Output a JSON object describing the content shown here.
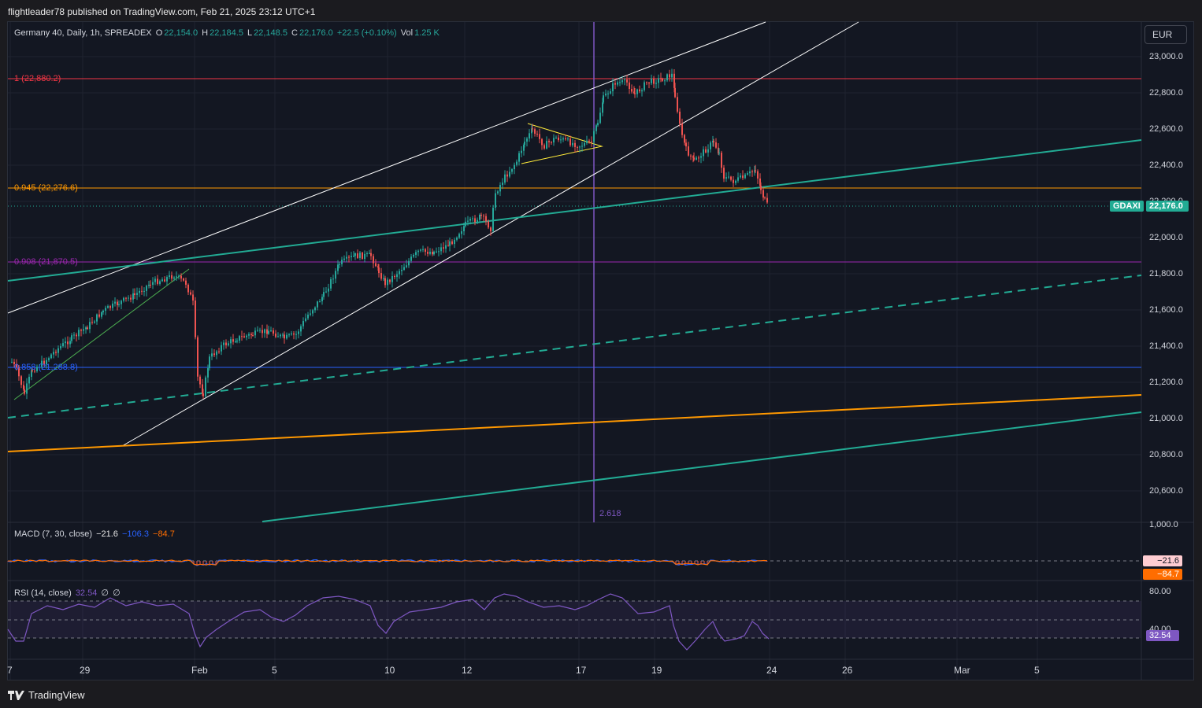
{
  "header": {
    "attribution": "flightleader78 published on TradingView.com, Feb 21, 2025 23:12 UTC+1"
  },
  "legend": {
    "symbol": "Germany 40, Daily, 1h, SPREADEX",
    "o_label": "O",
    "o_value": "22,154.0",
    "h_label": "H",
    "h_value": "22,184.5",
    "l_label": "L",
    "l_value": "22,148.5",
    "c_label": "C",
    "c_value": "22,176.0",
    "change": "+22.5 (+0.10%)",
    "vol_label": "Vol",
    "vol_value": "1.25 K"
  },
  "currency_button": "EUR",
  "price_axis": [
    "23,000.0",
    "22,800.0",
    "22,600.0",
    "22,400.0",
    "22,200.0",
    "22,000.0",
    "21,800.0",
    "21,600.0",
    "21,400.0",
    "21,200.0",
    "21,000.0",
    "20,800.0",
    "20,600.0"
  ],
  "price_axis_bottom": "1,000.0",
  "current_price": {
    "ticker": "GDAXI",
    "value": "22,176.0"
  },
  "fib_levels": [
    {
      "label": "1 (22,880.2)",
      "color": "#f23645"
    },
    {
      "label": "0.945 (22,276.6)",
      "color": "#ff9800"
    },
    {
      "label": "0.908 (21,870.5)",
      "color": "#9c27b0"
    },
    {
      "label": "0.858 (21,288.8)",
      "color": "#2962ff"
    }
  ],
  "fib_time_label": "2.618",
  "macd": {
    "title": "MACD (7, 30, close)",
    "v1": "−21.6",
    "v2": "−106.3",
    "v3": "−84.7",
    "badge1": "−21.6",
    "badge2": "−84.7"
  },
  "rsi": {
    "title": "RSI (14, close)",
    "value": "32.54",
    "extra1": "∅",
    "extra2": "∅",
    "axis_top": "80.00",
    "axis_mid": "40.00",
    "badge": "32.54"
  },
  "time_axis": [
    "7",
    "29",
    "Feb",
    "5",
    "10",
    "12",
    "17",
    "19",
    "24",
    "26",
    "Mar",
    "5"
  ],
  "footer": {
    "brand": "TradingView"
  },
  "colors": {
    "up": "#26a69a",
    "down": "#ef5350",
    "rsi": "#7e57c2",
    "channel": "#ffffff",
    "teal_line": "#22ab94",
    "orange_line": "#ff9800",
    "triangle": "#ffeb3b"
  },
  "chart_data": {
    "type": "candlestick",
    "timeframe": "1h",
    "ylim": [
      20500,
      23050
    ],
    "price_path_key_points": [
      [
        "Jan 27",
        21300
      ],
      [
        "Jan 27",
        21100
      ],
      [
        "Jan 29",
        21500
      ],
      [
        "Jan 30",
        21650
      ],
      [
        "Jan 31",
        21800
      ],
      [
        "Jan 31",
        21650
      ],
      [
        "Feb 3",
        21100
      ],
      [
        "Feb 3",
        21450
      ],
      [
        "Feb 4",
        21500
      ],
      [
        "Feb 5",
        21400
      ],
      [
        "Feb 6",
        21600
      ],
      [
        "Feb 7",
        21850
      ],
      [
        "Feb 8",
        21950
      ],
      [
        "Feb 10",
        21750
      ],
      [
        "Feb 11",
        21950
      ],
      [
        "Feb 12",
        22100
      ],
      [
        "Feb 13",
        22350
      ],
      [
        "Feb 14",
        22650
      ],
      [
        "Feb 15",
        22500
      ],
      [
        "Feb 17",
        22550
      ],
      [
        "Feb 17",
        22750
      ],
      [
        "Feb 18",
        22880
      ],
      [
        "Feb 18",
        22800
      ],
      [
        "Feb 19",
        22930
      ],
      [
        "Feb 20",
        22550
      ],
      [
        "Feb 20",
        22400
      ],
      [
        "Feb 21",
        22550
      ],
      [
        "Feb 21",
        22300
      ],
      [
        "Feb 23",
        22350
      ],
      [
        "Feb 24",
        22150
      ]
    ],
    "last_price": 22176.0
  }
}
